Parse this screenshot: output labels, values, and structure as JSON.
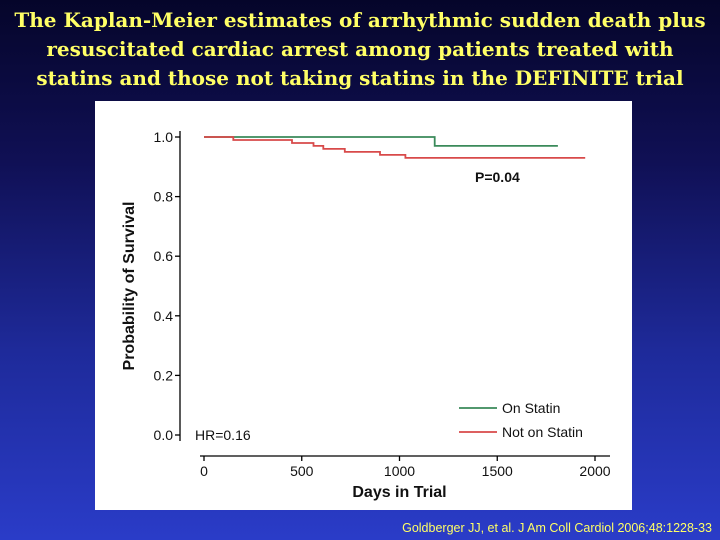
{
  "title_lines": [
    "The Kaplan-Meier estimates of arrhythmic sudden death plus",
    "resuscitated cardiac arrest among patients treated with",
    "statins and those not taking statins in the DEFINITE trial"
  ],
  "citation": "Goldberger JJ, et al. J Am Coll Cardiol 2006;48:1228-33",
  "colors": {
    "on_statin": "#3a8a5a",
    "not_on_statin": "#d84a4a",
    "title": "#ffff66"
  },
  "chart_data": {
    "type": "line",
    "xlabel": "Days in Trial",
    "ylabel": "Probability of Survival",
    "xlim": [
      0,
      2000
    ],
    "ylim": [
      0.0,
      1.0
    ],
    "xticks": [
      0,
      500,
      1000,
      1500,
      2000
    ],
    "xtick_labels": [
      "0",
      "500",
      "1000",
      "1500",
      "2000"
    ],
    "yticks": [
      0.0,
      0.2,
      0.4,
      0.6,
      0.8,
      1.0
    ],
    "ytick_labels": [
      "0.0",
      "0.2",
      "0.4",
      "0.6",
      "0.8",
      "1.0"
    ],
    "grid": false,
    "legend_position": "bottom-right",
    "annotations": {
      "p_value": "P=0.04",
      "hr": "HR=0.16"
    },
    "series": [
      {
        "name": "On Statin",
        "color": "#3a8a5a",
        "x": [
          0,
          1180,
          1180,
          1810
        ],
        "y": [
          1.0,
          1.0,
          0.97,
          0.97
        ]
      },
      {
        "name": "Not on Statin",
        "color": "#d84a4a",
        "x": [
          0,
          150,
          150,
          450,
          450,
          560,
          560,
          610,
          610,
          720,
          720,
          900,
          900,
          1030,
          1030,
          1950
        ],
        "y": [
          1.0,
          1.0,
          0.99,
          0.99,
          0.98,
          0.98,
          0.97,
          0.97,
          0.96,
          0.96,
          0.95,
          0.95,
          0.94,
          0.94,
          0.93,
          0.93
        ]
      }
    ]
  }
}
